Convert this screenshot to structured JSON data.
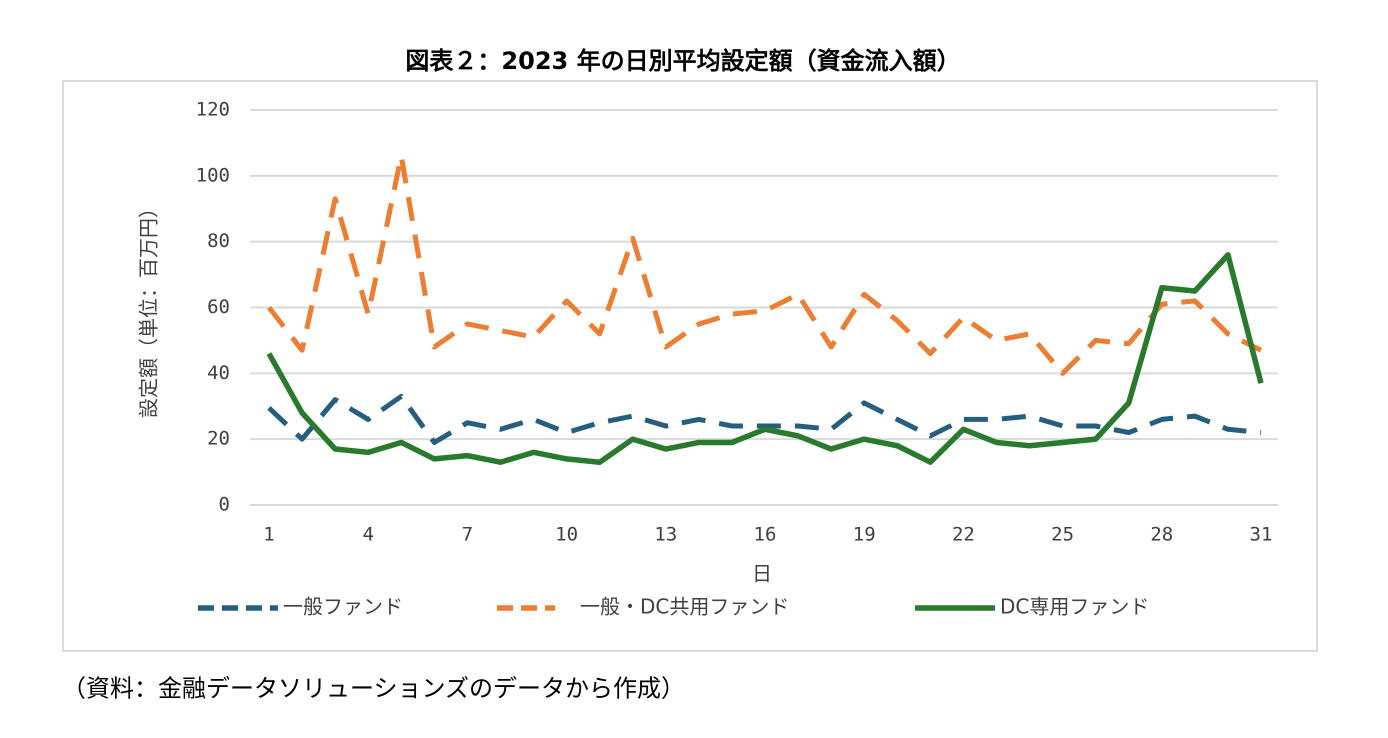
{
  "chart_data": {
    "type": "line",
    "title": "図表２：2023 年の日別平均設定額（資金流入額）",
    "x_label": "日",
    "y_label": "設定額（単位：百万円）",
    "source": "（資料：金融データソリューションズのデータから作成）",
    "x": [
      1,
      2,
      3,
      4,
      5,
      6,
      7,
      8,
      9,
      10,
      11,
      12,
      13,
      14,
      15,
      16,
      17,
      18,
      19,
      20,
      21,
      22,
      23,
      24,
      25,
      26,
      27,
      28,
      29,
      30,
      31
    ],
    "xlim": [
      1,
      31
    ],
    "xticks": [
      1,
      4,
      7,
      10,
      13,
      16,
      19,
      22,
      25,
      28,
      31
    ],
    "ylim": [
      0,
      120
    ],
    "yticks": [
      0,
      20,
      40,
      60,
      80,
      100,
      120
    ],
    "grid": true,
    "legend": "bottom",
    "series": [
      {
        "name": "一般ファンド",
        "color": "#255e7e",
        "dash": true,
        "values": [
          29.5,
          20,
          32,
          26,
          33,
          19,
          25,
          23,
          26,
          22,
          25,
          27,
          24,
          26,
          24,
          24,
          24,
          23,
          31,
          26,
          21,
          26,
          26,
          27,
          24,
          24,
          22,
          26,
          27,
          23,
          22
        ]
      },
      {
        "name": "一般・DC共用ファンド",
        "color": "#ed7d31",
        "dash": true,
        "values": [
          60,
          47,
          93,
          58,
          106,
          48,
          55,
          53,
          51,
          62,
          52,
          81,
          48,
          55,
          58,
          59,
          64,
          48,
          64,
          56,
          46,
          57,
          50,
          52,
          40,
          50,
          49,
          61,
          62,
          52,
          47
        ]
      },
      {
        "name": "DC専用ファンド",
        "color": "#2a7a2e",
        "dash": false,
        "values": [
          46,
          28,
          17,
          16,
          19,
          14,
          15,
          13,
          16,
          14,
          13,
          20,
          17,
          19,
          19,
          23,
          21,
          17,
          20,
          18,
          13,
          23,
          19,
          18,
          19,
          20,
          31,
          66,
          65,
          76,
          37
        ]
      }
    ]
  }
}
